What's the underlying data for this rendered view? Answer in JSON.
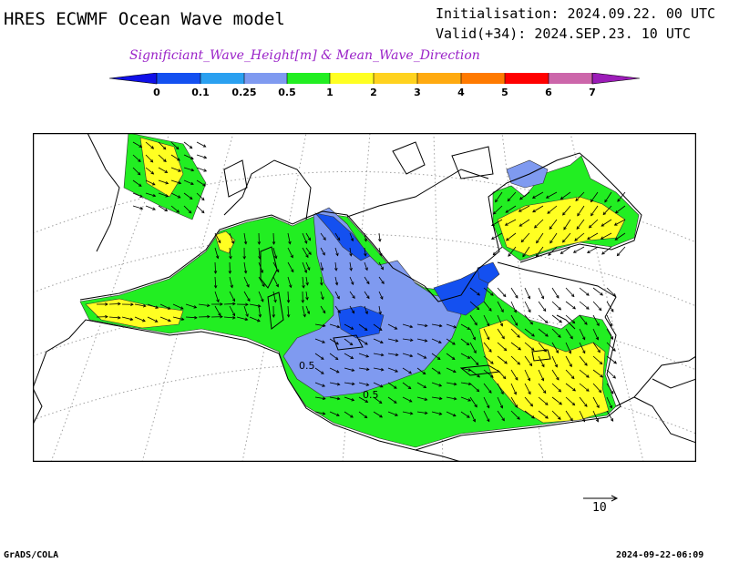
{
  "header": {
    "model_title": "HRES ECWMF Ocean Wave model",
    "initialisation": "Initialisation: 2024.09.22. 00 UTC",
    "valid": "Valid(+34): 2024.SEP.23. 10 UTC",
    "product": "Significiant_Wave_Height[m] & Mean_Wave_Direction"
  },
  "legend": {
    "labels": [
      "0",
      "0.1",
      "0.25",
      "0.5",
      "1",
      "2",
      "3",
      "4",
      "5",
      "6",
      "7"
    ],
    "colors": [
      "#1010e8",
      "#1450f0",
      "#2aa0f0",
      "#7f9af0",
      "#22ee22",
      "#ffff22",
      "#ffd21e",
      "#ffaa10",
      "#ff7a00",
      "#ff0000",
      "#cc66aa",
      "#9c1cb8"
    ]
  },
  "map": {
    "contour_labels": [
      "0.5",
      "0.5"
    ],
    "colors": {
      "land_fill": "#ffffff",
      "coast": "#000000",
      "grid": "#a0a0a0",
      "wave_lt_025": "#1450f0",
      "wave_025_05": "#7f9af0",
      "wave_05_1": "#22ee22",
      "wave_1_2": "#ffff22"
    }
  },
  "reference_arrow": {
    "label": "10"
  },
  "footer": {
    "left": "GrADS/COLA",
    "right": "2024-09-22-06:09"
  }
}
